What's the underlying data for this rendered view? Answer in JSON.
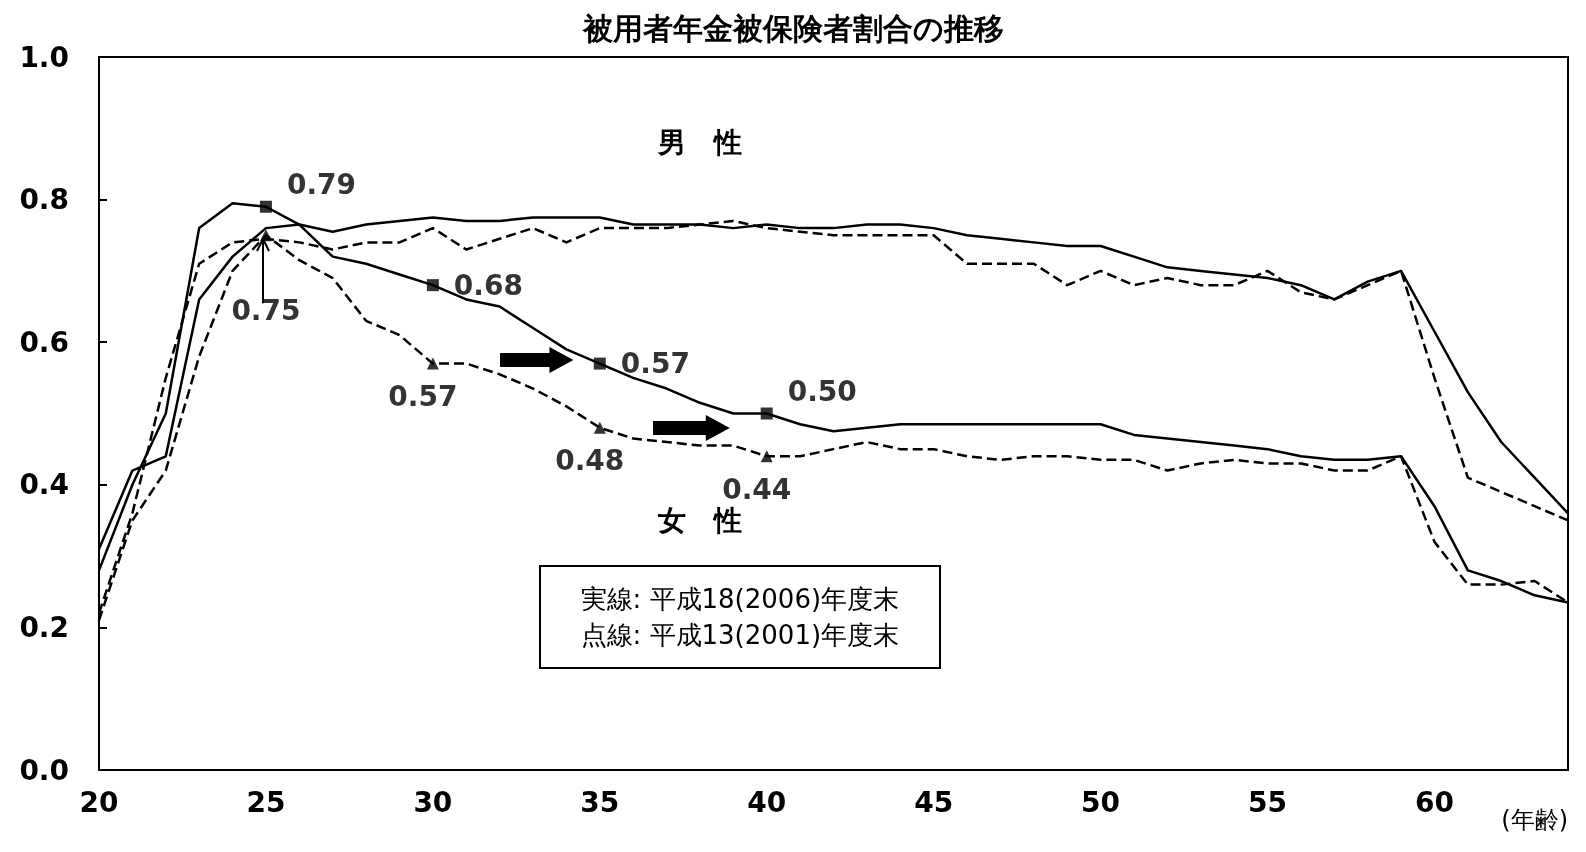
{
  "chart_data": {
    "type": "line",
    "title": "被用者年金被保険者割合の推移",
    "xlabel": "(年齢)",
    "x": [
      20,
      21,
      22,
      23,
      24,
      25,
      26,
      27,
      28,
      29,
      30,
      31,
      32,
      33,
      34,
      35,
      36,
      37,
      38,
      39,
      40,
      41,
      42,
      43,
      44,
      45,
      46,
      47,
      48,
      49,
      50,
      51,
      52,
      53,
      54,
      55,
      56,
      57,
      58,
      59,
      60,
      61,
      62,
      63,
      64
    ],
    "series": [
      {
        "color": "#000000",
        "line_style": "solid",
        "values": [
          0.28,
          0.4,
          0.5,
          0.76,
          0.795,
          0.79,
          0.765,
          0.755,
          0.765,
          0.77,
          0.775,
          0.77,
          0.77,
          0.775,
          0.775,
          0.775,
          0.765,
          0.765,
          0.765,
          0.76,
          0.765,
          0.76,
          0.76,
          0.765,
          0.765,
          0.76,
          0.75,
          0.745,
          0.74,
          0.735,
          0.735,
          0.72,
          0.705,
          0.7,
          0.695,
          0.69,
          0.68,
          0.66,
          0.685,
          0.7,
          0.615,
          0.53,
          0.46,
          0.41,
          0.36
        ]
      },
      {
        "color": "#000000",
        "line_style": "dashed",
        "values": [
          0.22,
          0.36,
          0.55,
          0.71,
          0.74,
          0.745,
          0.74,
          0.73,
          0.74,
          0.74,
          0.76,
          0.73,
          0.745,
          0.76,
          0.74,
          0.76,
          0.76,
          0.76,
          0.765,
          0.77,
          0.76,
          0.755,
          0.75,
          0.75,
          0.75,
          0.75,
          0.71,
          0.71,
          0.71,
          0.68,
          0.7,
          0.68,
          0.69,
          0.68,
          0.68,
          0.7,
          0.67,
          0.66,
          0.68,
          0.7,
          0.55,
          0.41,
          0.39,
          0.37,
          0.35
        ]
      },
      {
        "color": "#000000",
        "line_style": "solid",
        "values": [
          0.31,
          0.42,
          0.44,
          0.66,
          0.72,
          0.76,
          0.765,
          0.72,
          0.71,
          0.695,
          0.68,
          0.66,
          0.65,
          0.62,
          0.59,
          0.57,
          0.55,
          0.535,
          0.515,
          0.5,
          0.5,
          0.485,
          0.475,
          0.48,
          0.485,
          0.485,
          0.485,
          0.485,
          0.485,
          0.485,
          0.485,
          0.47,
          0.465,
          0.46,
          0.455,
          0.45,
          0.44,
          0.435,
          0.435,
          0.44,
          0.37,
          0.28,
          0.265,
          0.245,
          0.235
        ]
      },
      {
        "color": "#000000",
        "line_style": "dashed",
        "values": [
          0.21,
          0.35,
          0.42,
          0.58,
          0.7,
          0.75,
          0.715,
          0.69,
          0.63,
          0.61,
          0.57,
          0.57,
          0.555,
          0.535,
          0.51,
          0.48,
          0.465,
          0.46,
          0.455,
          0.455,
          0.44,
          0.44,
          0.45,
          0.46,
          0.45,
          0.45,
          0.44,
          0.435,
          0.44,
          0.44,
          0.435,
          0.435,
          0.42,
          0.43,
          0.435,
          0.43,
          0.43,
          0.42,
          0.42,
          0.44,
          0.32,
          0.26,
          0.26,
          0.265,
          0.235
        ]
      },
      {
        "type": "scatter",
        "marker": "square",
        "color": "#000000",
        "x": [
          25,
          30,
          35,
          40
        ],
        "values": [
          0.79,
          0.68,
          0.57,
          0.5
        ],
        "value_labels": [
          "0.79",
          "0.68",
          "0.57",
          "0.50"
        ]
      },
      {
        "type": "scatter",
        "marker": "triangle",
        "color": "#000000",
        "x": [
          25,
          30,
          35,
          40
        ],
        "values": [
          0.75,
          0.57,
          0.48,
          0.44
        ],
        "value_labels": [
          "0.75",
          "0.57",
          "0.48",
          "0.44"
        ]
      }
    ],
    "xlim": [
      20,
      64
    ],
    "xticks": [
      20,
      25,
      30,
      35,
      40,
      45,
      50,
      55,
      60
    ],
    "ylim": [
      0,
      1
    ],
    "yticks": [
      {
        "value": 0,
        "label": "0.0"
      },
      {
        "value": 0.2,
        "label": "0.2"
      },
      {
        "value": 0.4,
        "label": "0.4"
      },
      {
        "value": 0.6,
        "label": "0.6"
      },
      {
        "value": 0.8,
        "label": "0.8"
      },
      {
        "value": 1,
        "label": "1.0"
      }
    ],
    "grid": false,
    "annotations": [
      "男　性",
      "女　性",
      "実線: 平成18(2006)年度末",
      "点線: 平成13(2001)年度末"
    ]
  }
}
